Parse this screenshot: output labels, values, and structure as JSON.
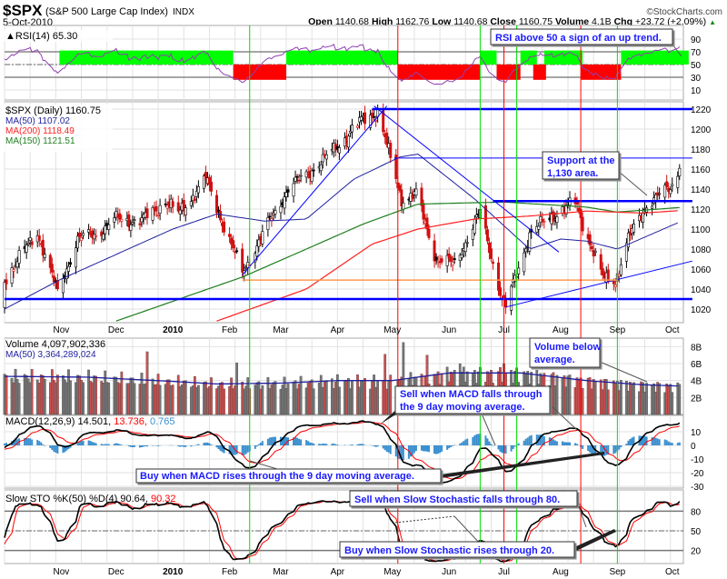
{
  "header": {
    "symbol": "$SPX",
    "name": "(S&P 500 Large Cap Index)",
    "exchange": "INDX",
    "brand": "©StockCharts.com",
    "date": "5-Oct-2010",
    "open_label": "Open",
    "open": "1140.68",
    "high_label": "High",
    "high": "1162.76",
    "low_label": "Low",
    "low": "1140.68",
    "close_label": "Close",
    "close": "1160.75",
    "volume_label": "Volume",
    "volume": "4.1B",
    "chg_label": "Chg",
    "chg": "+23.72 (+2.09%)",
    "chg_arrow": "▲"
  },
  "colors": {
    "up_block": "#00ff00",
    "down_block": "#ff0000",
    "ma50": "#1f1f9f",
    "ma200": "#ff2020",
    "ma150": "#1f7f1f",
    "trend": "#0000ff",
    "support": "#ff9a50",
    "buy_line": "#00dd00",
    "sell_line": "#ff0000",
    "volume_up": "#777777",
    "volume_down": "#cc5050",
    "macd_hist": "#3a8fcf",
    "signal": "#ff0000"
  },
  "legends": {
    "rsi": "RSI(14) 65.30",
    "price": "$SPX (Daily) 1160.75",
    "ma50": "MA(50) 1107.02",
    "ma200": "MA(200) 1118.49",
    "ma150": "MA(150) 1121.51",
    "volume": "Volume 4,097,902,336",
    "volume_ma": "MA(50) 3,364,289,024",
    "macd_a": "MACD(12,26,9) 14.501,",
    "macd_b": "13.736,",
    "macd_c": "0.765",
    "sto_a": "Slow STO %K(50) %D(4) 90.64,",
    "sto_b": "90.32"
  },
  "annotations": {
    "rsi": "RSI above 50 a sign of an up trend.",
    "support_1": "Support at the",
    "support_2": "1,130 area.",
    "volume_1": "Volume below",
    "volume_2": "average.",
    "macd_sell_1": "Sell when MACD falls through",
    "macd_sell_2": "the 9 day moving average.",
    "macd_buy": "Buy when MACD rises through the 9 day moving average.",
    "sto_sell": "Sell when Slow Stochastic falls through 80.",
    "sto_buy": "Buy when Slow Stochastic rises through 20."
  },
  "chart_data": {
    "type": "line",
    "x_range": [
      "2009-10-01",
      "2010-10-05"
    ],
    "month_labels": [
      [
        "2009-11-01",
        "Nov"
      ],
      [
        "2009-12-01",
        "Dec"
      ],
      [
        "2010-01-01",
        "2010"
      ],
      [
        "2010-02-01",
        "Feb"
      ],
      [
        "2010-03-01",
        "Mar"
      ],
      [
        "2010-04-01",
        "Apr"
      ],
      [
        "2010-05-01",
        "May"
      ],
      [
        "2010-06-01",
        "Jun"
      ],
      [
        "2010-07-01",
        "Jul"
      ],
      [
        "2010-08-01",
        "Aug"
      ],
      [
        "2010-09-01",
        "Sep"
      ],
      [
        "2010-10-01",
        "Oct"
      ]
    ],
    "price": {
      "ylim": [
        1010,
        1228
      ],
      "ticks": [
        1220,
        1200,
        1180,
        1160,
        1140,
        1120,
        1100,
        1080,
        1060,
        1040,
        1020
      ],
      "close": [
        [
          "2009-10-01",
          1050
        ],
        [
          "2009-10-19",
          1097
        ],
        [
          "2009-10-30",
          1036
        ],
        [
          "2009-11-10",
          1090
        ],
        [
          "2009-11-20",
          1095
        ],
        [
          "2009-12-01",
          1110
        ],
        [
          "2009-12-15",
          1108
        ],
        [
          "2009-12-28",
          1128
        ],
        [
          "2010-01-04",
          1115
        ],
        [
          "2010-01-19",
          1150
        ],
        [
          "2010-02-08",
          1056
        ],
        [
          "2010-02-22",
          1105
        ],
        [
          "2010-03-05",
          1140
        ],
        [
          "2010-03-25",
          1170
        ],
        [
          "2010-04-15",
          1210
        ],
        [
          "2010-04-23",
          1217
        ],
        [
          "2010-05-06",
          1130
        ],
        [
          "2010-05-14",
          1135
        ],
        [
          "2010-05-25",
          1070
        ],
        [
          "2010-06-04",
          1065
        ],
        [
          "2010-06-18",
          1117
        ],
        [
          "2010-06-30",
          1030
        ],
        [
          "2010-07-02",
          1022
        ],
        [
          "2010-07-15",
          1095
        ],
        [
          "2010-07-27",
          1113
        ],
        [
          "2010-08-09",
          1127
        ],
        [
          "2010-08-24",
          1051
        ],
        [
          "2010-08-31",
          1049
        ],
        [
          "2010-09-07",
          1090
        ],
        [
          "2010-09-17",
          1125
        ],
        [
          "2010-09-30",
          1141
        ],
        [
          "2010-10-05",
          1160.75
        ]
      ],
      "ma50": [
        [
          "2009-10-01",
          1020
        ],
        [
          "2009-11-01",
          1050
        ],
        [
          "2010-01-01",
          1100
        ],
        [
          "2010-01-25",
          1115
        ],
        [
          "2010-02-20",
          1108
        ],
        [
          "2010-03-15",
          1110
        ],
        [
          "2010-04-10",
          1150
        ],
        [
          "2010-05-05",
          1172
        ],
        [
          "2010-05-15",
          1175
        ],
        [
          "2010-06-15",
          1130
        ],
        [
          "2010-07-15",
          1080
        ],
        [
          "2010-08-01",
          1090
        ],
        [
          "2010-08-15",
          1088
        ],
        [
          "2010-09-01",
          1080
        ],
        [
          "2010-10-05",
          1107.02
        ]
      ],
      "ma150": [
        [
          "2009-12-01",
          1008
        ],
        [
          "2010-02-08",
          1052
        ],
        [
          "2010-03-15",
          1080
        ],
        [
          "2010-04-15",
          1105
        ],
        [
          "2010-05-15",
          1125
        ],
        [
          "2010-07-01",
          1127
        ],
        [
          "2010-08-15",
          1122
        ],
        [
          "2010-09-01",
          1117
        ],
        [
          "2010-10-05",
          1121.51
        ]
      ],
      "ma200": [
        [
          "2010-01-25",
          1008
        ],
        [
          "2010-03-15",
          1040
        ],
        [
          "2010-04-20",
          1085
        ],
        [
          "2010-05-15",
          1100
        ],
        [
          "2010-06-15",
          1110
        ],
        [
          "2010-07-15",
          1113
        ],
        [
          "2010-08-15",
          1118
        ],
        [
          "2010-09-15",
          1116
        ],
        [
          "2010-10-05",
          1118.49
        ]
      ],
      "trendlines": [
        {
          "kind": "resistance",
          "from": [
            "2010-04-20",
            1220
          ],
          "to": [
            "2010-10-12",
            1220
          ]
        },
        {
          "kind": "support",
          "from": [
            "2010-06-25",
            1128
          ],
          "to": [
            "2010-10-12",
            1128
          ]
        },
        {
          "kind": "support",
          "from": [
            "2009-10-01",
            1030
          ],
          "to": [
            "2010-10-12",
            1030
          ]
        },
        {
          "kind": "thin",
          "from": [
            "2010-05-02",
            1171
          ],
          "to": [
            "2010-10-12",
            1171
          ]
        },
        {
          "kind": "rising",
          "from": [
            "2010-02-08",
            1054
          ],
          "to": [
            "2010-04-28",
            1223
          ]
        },
        {
          "kind": "falling",
          "from": [
            "2010-04-21",
            1223
          ],
          "to": [
            "2010-07-31",
            1077
          ]
        },
        {
          "kind": "rising",
          "from": [
            "2010-07-02",
            1022
          ],
          "to": [
            "2010-10-12",
            1068
          ]
        },
        {
          "kind": "orange",
          "from": [
            "2010-02-08",
            1049
          ],
          "to": [
            "2010-09-01",
            1049
          ]
        }
      ]
    },
    "rsi": {
      "ylim": [
        0,
        100
      ],
      "ticks": [
        90,
        70,
        50,
        30,
        10
      ],
      "up_blocks": [
        [
          "2009-10-31",
          "2010-02-03"
        ],
        [
          "2010-03-04",
          "2010-05-04"
        ],
        [
          "2010-06-18",
          "2010-06-27"
        ],
        [
          "2010-07-10",
          "2010-07-19"
        ],
        [
          "2010-07-23",
          "2010-08-13"
        ],
        [
          "2010-09-03",
          "2010-10-10"
        ]
      ],
      "down_blocks": [
        [
          "2010-02-03",
          "2010-03-04"
        ],
        [
          "2010-05-04",
          "2010-06-18"
        ],
        [
          "2010-06-27",
          "2010-07-10"
        ],
        [
          "2010-07-17",
          "2010-07-24"
        ],
        [
          "2010-08-12",
          "2010-09-03"
        ]
      ]
    },
    "volume": {
      "ylim_billions": [
        0,
        8.8
      ],
      "ticks": [
        [
          "8B",
          8
        ],
        [
          "6B",
          6
        ],
        [
          "4B",
          4
        ],
        [
          "2B",
          2
        ]
      ],
      "ma50": [
        [
          "2009-10-01",
          4.5
        ],
        [
          "2009-11-15",
          4.4
        ],
        [
          "2010-01-01",
          3.9
        ],
        [
          "2010-01-25",
          3.6
        ],
        [
          "2010-03-01",
          3.7
        ],
        [
          "2010-04-01",
          4.0
        ],
        [
          "2010-05-01",
          4.0
        ],
        [
          "2010-06-01",
          4.9
        ],
        [
          "2010-07-10",
          4.9
        ],
        [
          "2010-08-15",
          4.0
        ],
        [
          "2010-09-15",
          3.5
        ],
        [
          "2010-10-05",
          3.36
        ]
      ],
      "spikes": [
        [
          "2009-12-18",
          7.4
        ],
        [
          "2010-02-05",
          6.1
        ],
        [
          "2010-05-07",
          8.5
        ],
        [
          "2010-05-20",
          7.0
        ],
        [
          "2010-04-27",
          7.1
        ],
        [
          "2010-06-07",
          6.0
        ],
        [
          "2010-07-01",
          6.0
        ]
      ]
    },
    "macd": {
      "params": [
        12,
        26,
        9
      ],
      "ticks": [
        10,
        0,
        -10,
        -20,
        -30
      ],
      "ylim": [
        -30,
        20
      ]
    },
    "stochastic": {
      "params": [
        50,
        4
      ],
      "ticks": [
        80,
        50,
        20
      ],
      "ylim": [
        0,
        100
      ]
    },
    "signal_lines": {
      "buy": [
        "2010-02-12",
        "2010-06-18",
        "2010-07-08",
        "2010-09-01"
      ],
      "sell": [
        "2010-05-04",
        "2010-07-01",
        "2010-08-12"
      ]
    }
  }
}
